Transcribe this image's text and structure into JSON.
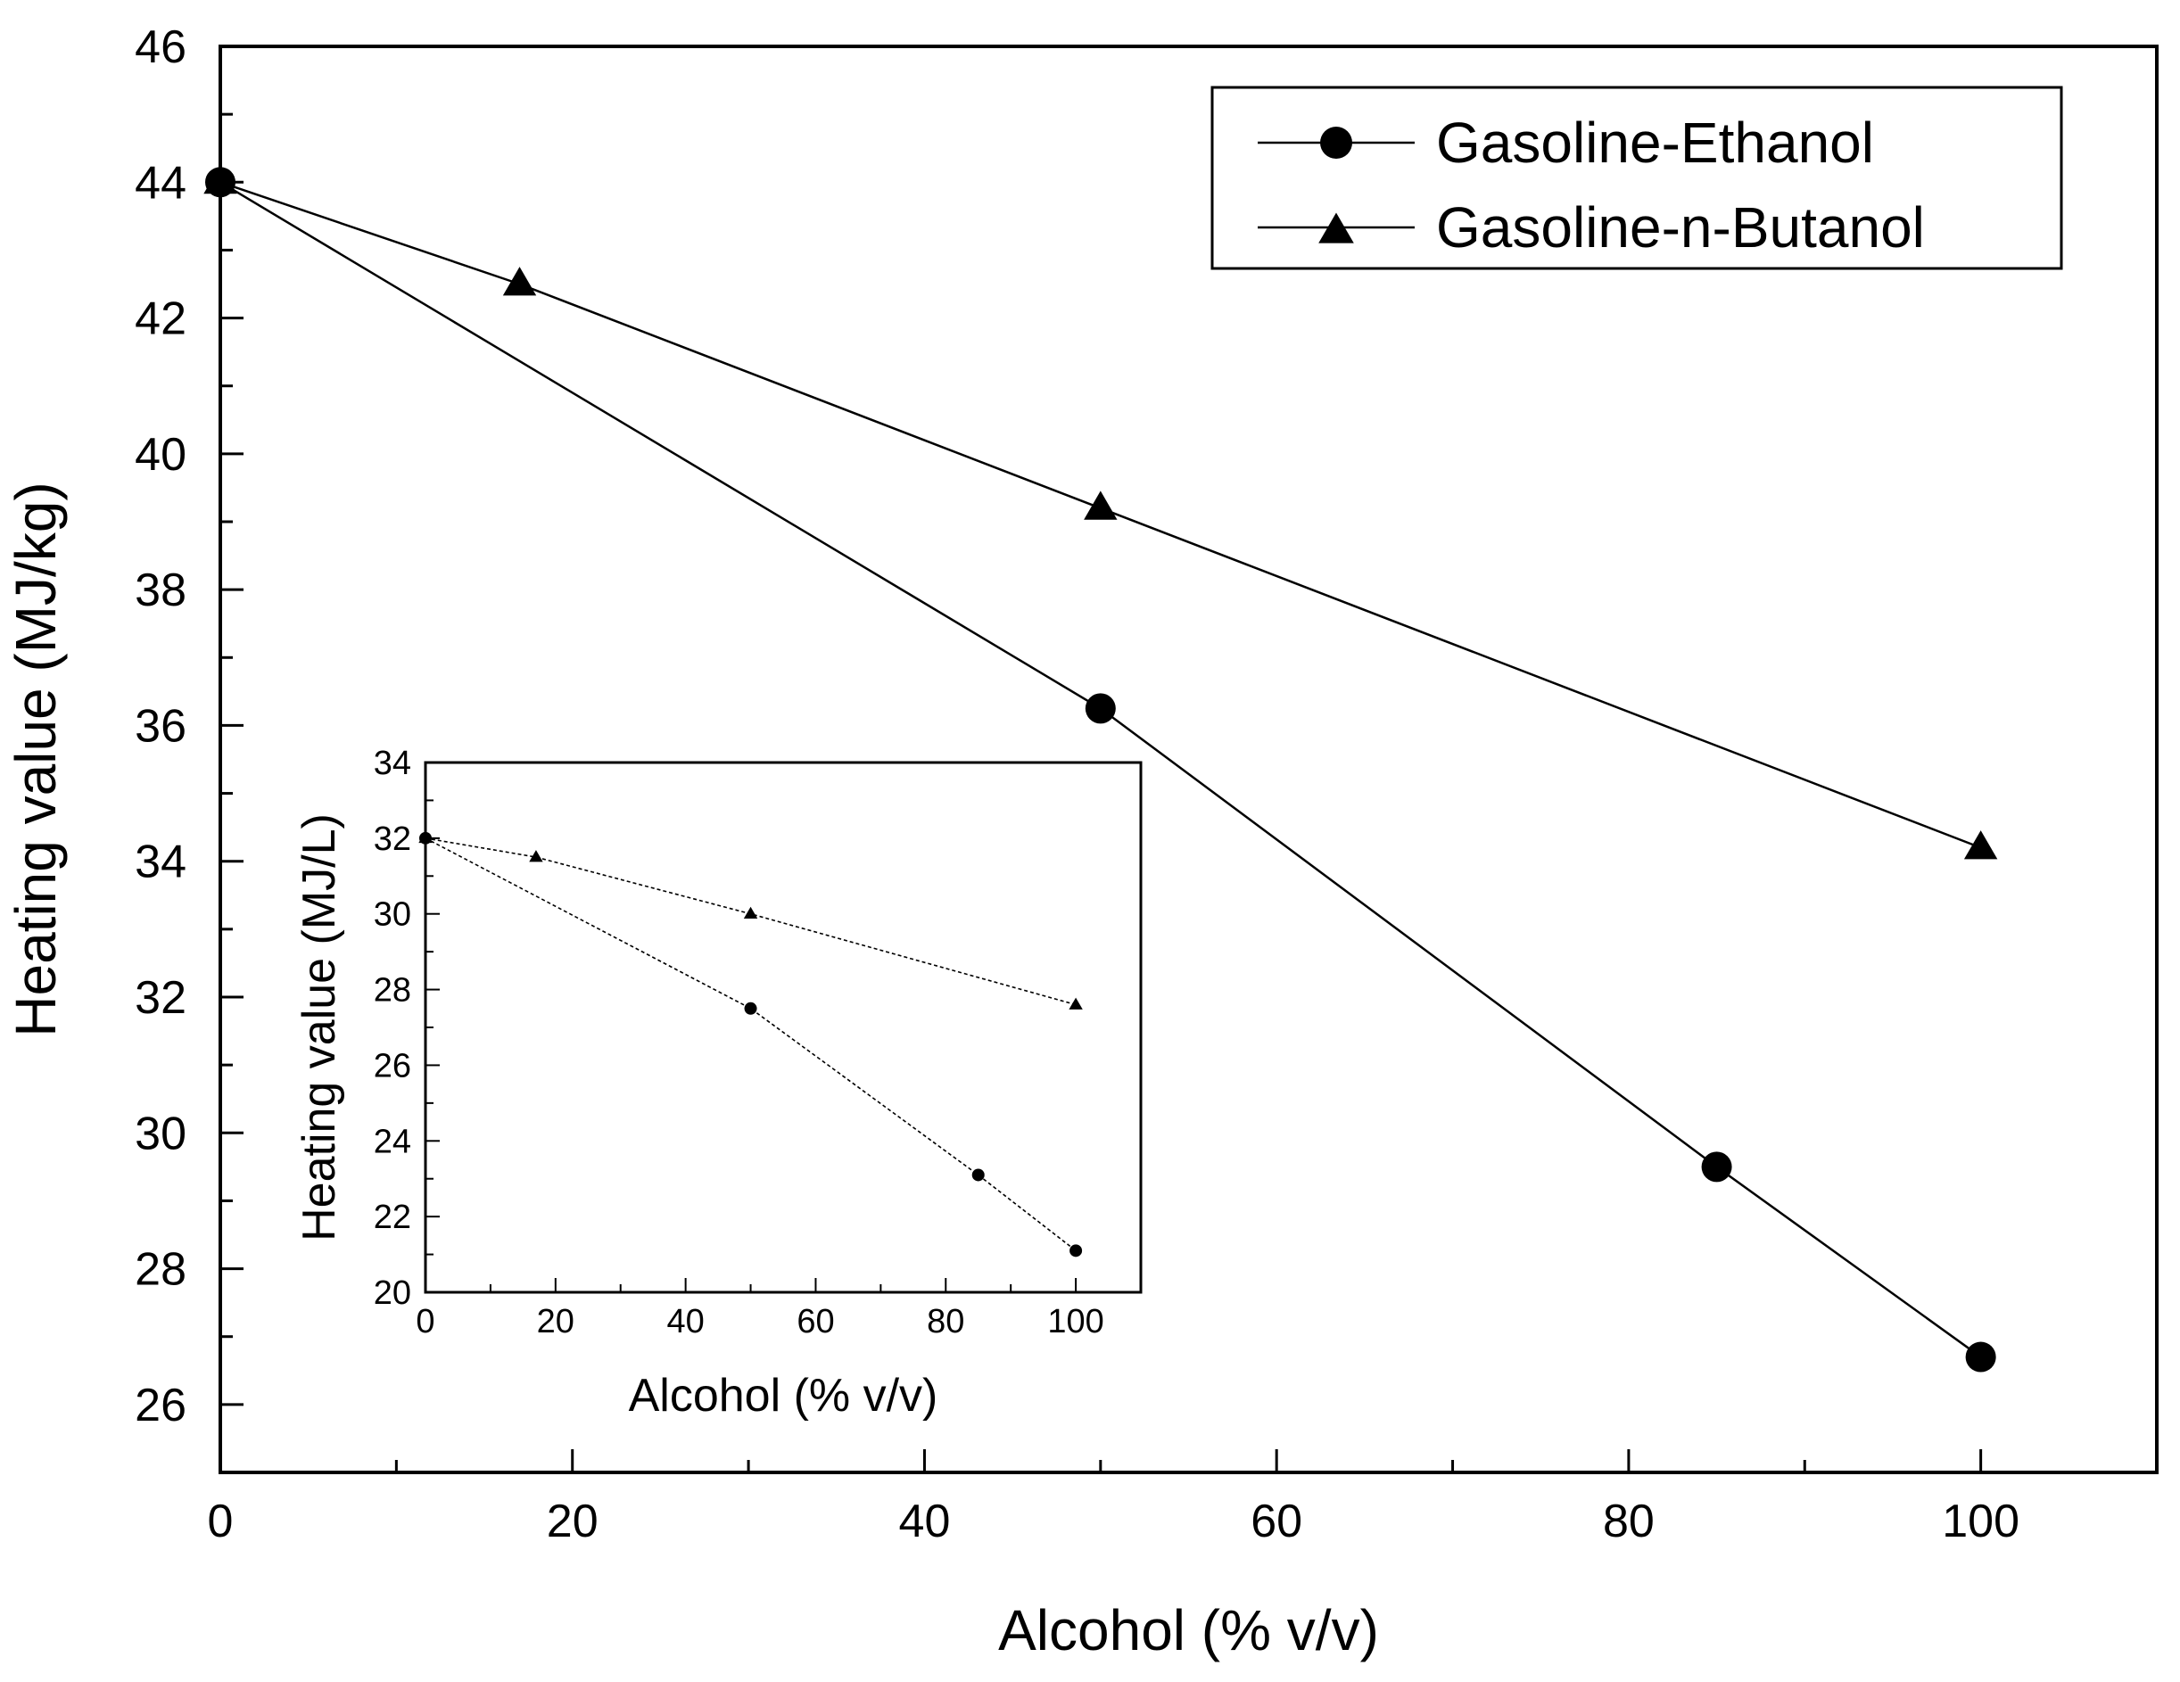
{
  "chart_data": [
    {
      "type": "line",
      "role": "main",
      "title": "",
      "xlabel": "Alcohol (% v/v)",
      "ylabel": "Heating value (MJ/kg)",
      "xlim": [
        0,
        110
      ],
      "ylim": [
        25,
        46
      ],
      "xticks": [
        0,
        20,
        40,
        60,
        80,
        100
      ],
      "yticks": [
        26,
        28,
        30,
        32,
        34,
        36,
        38,
        40,
        42,
        44,
        46
      ],
      "grid": false,
      "legend_position": "top-right",
      "series": [
        {
          "name": "Gasoline-Ethanol",
          "marker": "circle",
          "x": [
            0,
            50,
            85,
            100
          ],
          "y": [
            44.0,
            36.25,
            29.5,
            26.7
          ]
        },
        {
          "name": "Gasoline-n-Butanol",
          "marker": "triangle",
          "x": [
            0,
            17,
            50,
            100
          ],
          "y": [
            44.0,
            42.5,
            39.2,
            34.2
          ]
        }
      ]
    },
    {
      "type": "line",
      "role": "inset",
      "title": "",
      "xlabel": "Alcohol (% v/v)",
      "ylabel": "Heating value (MJ/L)",
      "xlim": [
        0,
        110
      ],
      "ylim": [
        20,
        34
      ],
      "xticks": [
        0,
        20,
        40,
        60,
        80,
        100
      ],
      "yticks": [
        20,
        22,
        24,
        26,
        28,
        30,
        32,
        34
      ],
      "grid": false,
      "series": [
        {
          "name": "Gasoline-Ethanol",
          "marker": "circle",
          "x": [
            0,
            50,
            85,
            100
          ],
          "y": [
            32.0,
            27.5,
            23.1,
            21.1
          ]
        },
        {
          "name": "Gasoline-n-Butanol",
          "marker": "triangle",
          "x": [
            0,
            17,
            50,
            100
          ],
          "y": [
            32.0,
            31.5,
            30.0,
            27.6
          ]
        }
      ]
    }
  ]
}
